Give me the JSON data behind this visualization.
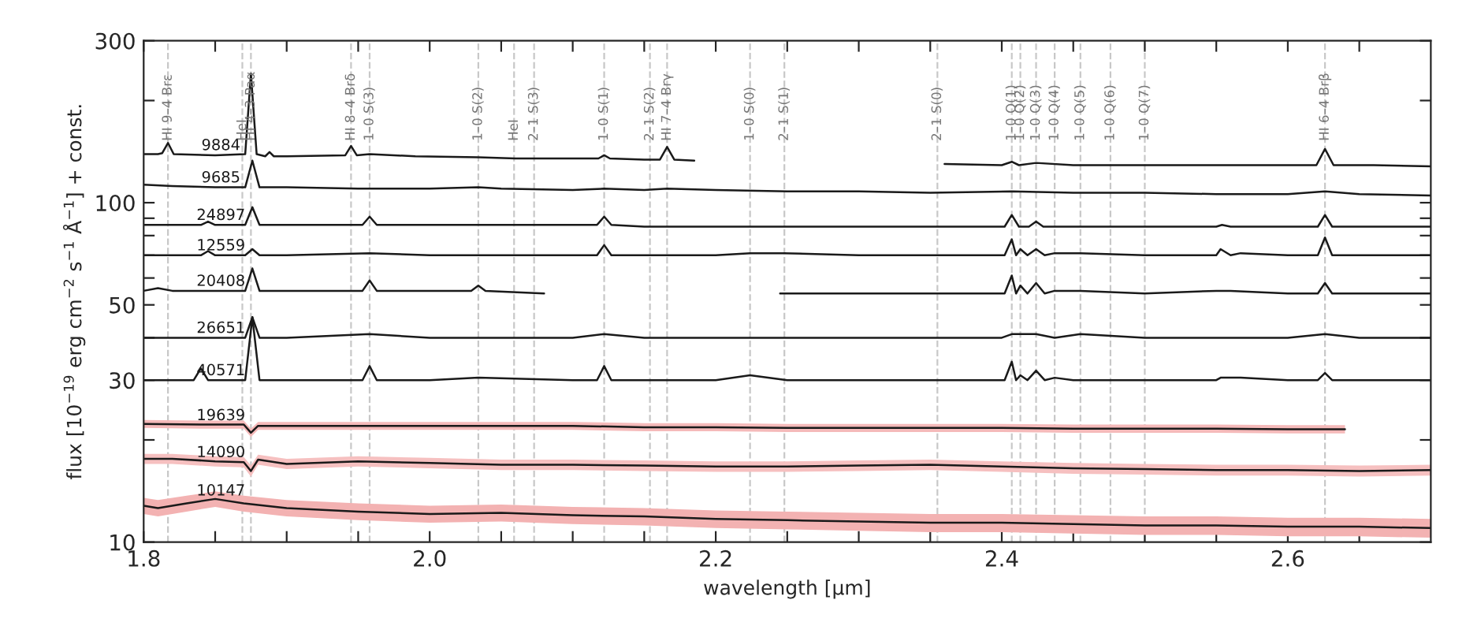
{
  "chart_data": {
    "type": "line",
    "xlabel": "wavelength [µm]",
    "ylabel": "flux [10$^{−19}$ erg cm$^{−2}$ s$^{−1}$ Å$^{−1}$] + const.",
    "log": "y",
    "grid": false,
    "legend": false,
    "line_style": "solid",
    "xlim": [
      1.8,
      2.7
    ],
    "ylim": [
      10,
      300
    ],
    "xticks": [
      1.8,
      {
        "value": 1.85,
        "label": null
      },
      {
        "value": 1.9,
        "label": null
      },
      {
        "value": 1.95,
        "label": null
      },
      {
        "value": 2.0,
        "label": "2.0"
      },
      {
        "value": 2.05,
        "label": null
      },
      {
        "value": 2.1,
        "label": null
      },
      {
        "value": 2.15,
        "label": null
      },
      2.2,
      {
        "value": 2.25,
        "label": null
      },
      {
        "value": 2.3,
        "label": null
      },
      {
        "value": 2.35,
        "label": null
      },
      2.4,
      {
        "value": 2.45,
        "label": null
      },
      {
        "value": 2.5,
        "label": null
      },
      {
        "value": 2.55,
        "label": null
      },
      2.6,
      {
        "value": 2.65,
        "label": null
      }
    ],
    "yticks": [
      10,
      {
        "value": 20,
        "label": null
      },
      30,
      {
        "value": 40,
        "label": null
      },
      50,
      {
        "value": 60,
        "label": null
      },
      {
        "value": 70,
        "label": null
      },
      {
        "value": 80,
        "label": null
      },
      {
        "value": 90,
        "label": null
      },
      100,
      {
        "value": 200,
        "label": null
      },
      300
    ],
    "ref_lines": [
      {
        "axis": "x",
        "value": 1.817,
        "label": "HI 9–4 Brε",
        "color": "#c8c8c8",
        "line_style": "dashed"
      },
      {
        "axis": "x",
        "value": 1.869,
        "label": "HeI",
        "color": "#c8c8c8",
        "line_style": "dashed"
      },
      {
        "axis": "x",
        "value": 1.875,
        "label": "HI 4–3 Paα",
        "color": "#c8c8c8",
        "line_style": "dashed"
      },
      {
        "axis": "x",
        "value": 1.945,
        "label": "HI 8–4 Brδ",
        "color": "#c8c8c8",
        "line_style": "dashed"
      },
      {
        "axis": "x",
        "value": 1.958,
        "label": "1–0 S(3)",
        "color": "#c8c8c8",
        "line_style": "dashed"
      },
      {
        "axis": "x",
        "value": 2.034,
        "label": "1–0 S(2)",
        "color": "#c8c8c8",
        "line_style": "dashed"
      },
      {
        "axis": "x",
        "value": 2.059,
        "label": "HeI",
        "color": "#c8c8c8",
        "line_style": "dashed"
      },
      {
        "axis": "x",
        "value": 2.073,
        "label": "2–1 S(3)",
        "color": "#c8c8c8",
        "line_style": "dashed"
      },
      {
        "axis": "x",
        "value": 2.122,
        "label": "1–0 S(1)",
        "color": "#c8c8c8",
        "line_style": "dashed"
      },
      {
        "axis": "x",
        "value": 2.154,
        "label": "2–1 S(2)",
        "color": "#c8c8c8",
        "line_style": "dashed"
      },
      {
        "axis": "x",
        "value": 2.166,
        "label": "HI 7–4 Brγ",
        "color": "#c8c8c8",
        "line_style": "dashed"
      },
      {
        "axis": "x",
        "value": 2.224,
        "label": "1–0 S(0)",
        "color": "#c8c8c8",
        "line_style": "dashed"
      },
      {
        "axis": "x",
        "value": 2.248,
        "label": "2–1 S(1)",
        "color": "#c8c8c8",
        "line_style": "dashed"
      },
      {
        "axis": "x",
        "value": 2.355,
        "label": "2–1 S(0)",
        "color": "#c8c8c8",
        "line_style": "dashed"
      },
      {
        "axis": "x",
        "value": 2.407,
        "label": "1–0 Q(1)",
        "color": "#c8c8c8",
        "line_style": "dashed"
      },
      {
        "axis": "x",
        "value": 2.413,
        "label": "1–0 Q(2)",
        "color": "#c8c8c8",
        "line_style": "dashed"
      },
      {
        "axis": "x",
        "value": 2.424,
        "label": "1–0 Q(3)",
        "color": "#c8c8c8",
        "line_style": "dashed"
      },
      {
        "axis": "x",
        "value": 2.437,
        "label": "1–0 Q(4)",
        "color": "#c8c8c8",
        "line_style": "dashed"
      },
      {
        "axis": "x",
        "value": 2.455,
        "label": "1–0 Q(5)",
        "color": "#c8c8c8",
        "line_style": "dashed"
      },
      {
        "axis": "x",
        "value": 2.476,
        "label": "1–0 Q(6)",
        "color": "#c8c8c8",
        "line_style": "dashed"
      },
      {
        "axis": "x",
        "value": 2.5,
        "label": "1–0 Q(7)",
        "color": "#c8c8c8",
        "line_style": "dashed"
      },
      {
        "axis": "x",
        "value": 2.626,
        "label": "HI 6–4 Brβ",
        "color": "#c8c8c8",
        "line_style": "dashed"
      }
    ],
    "series": [
      {
        "name": "9884",
        "color": "#1a1a1a",
        "x": [
          1.8,
          1.81,
          1.813,
          1.817,
          1.821,
          1.85,
          1.871,
          1.875,
          1.879,
          1.885,
          1.888,
          1.891,
          1.9,
          1.941,
          1.945,
          1.949,
          1.958,
          1.99,
          2.034,
          2.06,
          2.1,
          2.118,
          2.122,
          2.126,
          2.15,
          2.161,
          2.166,
          2.171,
          2.185,
          2.27,
          2.36,
          2.4,
          2.407,
          2.412,
          2.424,
          2.45,
          2.5,
          2.55,
          2.62,
          2.626,
          2.632,
          2.66,
          2.7
        ],
        "values": [
          139,
          139,
          140,
          150,
          139,
          138,
          139,
          240,
          139,
          137,
          141,
          137,
          137,
          138,
          147,
          138,
          139,
          137,
          136,
          135,
          135,
          135,
          138,
          135,
          134,
          134,
          146,
          134,
          133,
          null,
          130,
          129,
          132,
          129,
          131,
          129,
          129,
          129,
          129,
          144,
          129,
          129,
          128
        ]
      },
      {
        "name": "9685",
        "color": "#1a1a1a",
        "x": [
          1.8,
          1.82,
          1.85,
          1.871,
          1.876,
          1.881,
          1.9,
          1.95,
          2.0,
          2.034,
          2.05,
          2.1,
          2.122,
          2.15,
          2.166,
          2.2,
          2.25,
          2.3,
          2.35,
          2.407,
          2.45,
          2.5,
          2.55,
          2.6,
          2.626,
          2.65,
          2.7
        ],
        "values": [
          113,
          112,
          111,
          111,
          133,
          111,
          111,
          110,
          110,
          111,
          110,
          109,
          110,
          109,
          110,
          109,
          108,
          108,
          107,
          108,
          107,
          107,
          106,
          106,
          108,
          106,
          105
        ]
      },
      {
        "name": "24897",
        "color": "#1a1a1a",
        "x": [
          1.8,
          1.82,
          1.84,
          1.845,
          1.85,
          1.871,
          1.876,
          1.881,
          1.9,
          1.953,
          1.958,
          1.963,
          2.0,
          2.034,
          2.1,
          2.117,
          2.122,
          2.127,
          2.15,
          2.2,
          2.248,
          2.3,
          2.355,
          2.4,
          2.402,
          2.407,
          2.412,
          2.419,
          2.424,
          2.429,
          2.45,
          2.5,
          2.55,
          2.554,
          2.56,
          2.6,
          2.621,
          2.626,
          2.631,
          2.65,
          2.7
        ],
        "values": [
          86,
          86,
          86,
          88,
          86,
          86,
          97,
          86,
          86,
          86,
          91,
          86,
          86,
          86,
          86,
          86,
          91,
          86,
          85,
          85,
          85,
          85,
          85,
          85,
          85,
          92,
          85,
          85,
          88,
          85,
          85,
          85,
          85,
          86,
          85,
          85,
          85,
          92,
          85,
          85,
          85
        ]
      },
      {
        "name": "12559",
        "color": "#1a1a1a",
        "x": [
          1.8,
          1.84,
          1.845,
          1.85,
          1.871,
          1.876,
          1.881,
          1.9,
          1.958,
          2.0,
          2.05,
          2.1,
          2.117,
          2.122,
          2.127,
          2.2,
          2.224,
          2.248,
          2.3,
          2.355,
          2.4,
          2.402,
          2.407,
          2.41,
          2.413,
          2.418,
          2.424,
          2.43,
          2.437,
          2.455,
          2.5,
          2.55,
          2.553,
          2.56,
          2.567,
          2.6,
          2.621,
          2.626,
          2.631,
          2.65,
          2.7
        ],
        "values": [
          70,
          70,
          72,
          70,
          70,
          73,
          70,
          70,
          71,
          70,
          70,
          70,
          70,
          75,
          70,
          70,
          71,
          71,
          70,
          70,
          70,
          70,
          78,
          70,
          73,
          70,
          73,
          70,
          71,
          71,
          70,
          70,
          73,
          70,
          71,
          70,
          70,
          79,
          70,
          70,
          70
        ]
      },
      {
        "name": "20408",
        "color": "#1a1a1a",
        "x": [
          1.8,
          1.81,
          1.82,
          1.85,
          1.871,
          1.876,
          1.881,
          1.9,
          1.953,
          1.958,
          1.963,
          2.0,
          2.029,
          2.034,
          2.039,
          2.08,
          2.16,
          2.245,
          2.3,
          2.355,
          2.4,
          2.402,
          2.407,
          2.41,
          2.413,
          2.418,
          2.424,
          2.43,
          2.437,
          2.455,
          2.5,
          2.55,
          2.56,
          2.6,
          2.621,
          2.626,
          2.631,
          2.65,
          2.7
        ],
        "values": [
          55,
          56,
          55,
          55,
          55,
          64,
          55,
          55,
          55,
          59,
          55,
          55,
          55,
          57,
          55,
          54,
          null,
          54,
          54,
          54,
          54,
          54,
          61,
          54,
          57,
          54,
          58,
          54,
          55,
          55,
          54,
          55,
          55,
          54,
          54,
          58,
          54,
          54,
          54
        ]
      },
      {
        "name": "26651",
        "color": "#1a1a1a",
        "x": [
          1.8,
          1.85,
          1.871,
          1.876,
          1.881,
          1.9,
          1.958,
          2.0,
          2.05,
          2.1,
          2.122,
          2.15,
          2.2,
          2.25,
          2.3,
          2.35,
          2.4,
          2.407,
          2.424,
          2.437,
          2.455,
          2.5,
          2.55,
          2.6,
          2.626,
          2.65,
          2.7
        ],
        "values": [
          40,
          40,
          40,
          46,
          40,
          40,
          41,
          40,
          40,
          40,
          41,
          40,
          40,
          40,
          40,
          40,
          40,
          41,
          41,
          40,
          41,
          40,
          40,
          40,
          41,
          40,
          40
        ]
      },
      {
        "name": "40571",
        "color": "#1a1a1a",
        "x": [
          1.8,
          1.82,
          1.835,
          1.84,
          1.845,
          1.85,
          1.871,
          1.876,
          1.881,
          1.9,
          1.953,
          1.958,
          1.963,
          2.0,
          2.034,
          2.1,
          2.117,
          2.122,
          2.127,
          2.15,
          2.2,
          2.224,
          2.25,
          2.3,
          2.35,
          2.4,
          2.402,
          2.407,
          2.41,
          2.413,
          2.418,
          2.424,
          2.43,
          2.437,
          2.45,
          2.5,
          2.55,
          2.553,
          2.567,
          2.6,
          2.621,
          2.626,
          2.631,
          2.65,
          2.7
        ],
        "values": [
          30,
          30,
          30,
          32.5,
          30,
          30,
          30,
          46,
          30,
          30,
          30,
          33,
          30,
          30,
          30.5,
          30,
          30,
          33,
          30,
          30,
          30,
          31,
          30,
          30,
          30,
          30,
          30,
          34,
          30,
          31,
          30,
          32,
          30,
          30.5,
          30,
          30,
          30,
          30.5,
          30.5,
          30,
          30,
          31.5,
          30,
          30,
          30
        ]
      },
      {
        "name": "19639",
        "color": "#1a1a1a",
        "x": [
          1.8,
          1.84,
          1.87,
          1.875,
          1.88,
          1.9,
          1.95,
          2.0,
          2.05,
          2.1,
          2.15,
          2.2,
          2.25,
          2.3,
          2.35,
          2.4,
          2.45,
          2.5,
          2.55,
          2.6,
          2.64
        ],
        "values": [
          22.3,
          22.2,
          22.2,
          21.0,
          22.0,
          22.0,
          22.0,
          22.0,
          22.0,
          22.0,
          21.8,
          21.8,
          21.7,
          21.7,
          21.7,
          21.7,
          21.6,
          21.6,
          21.6,
          21.5,
          21.5
        ],
        "lower": [
          21.7,
          21.6,
          21.6,
          20.4,
          21.4,
          21.4,
          21.4,
          21.4,
          21.4,
          21.4,
          21.2,
          21.2,
          21.1,
          21.1,
          21.1,
          21.1,
          21.0,
          21.0,
          21.0,
          20.9,
          20.9
        ],
        "upper": [
          22.9,
          22.8,
          22.8,
          21.6,
          22.6,
          22.6,
          22.6,
          22.6,
          22.6,
          22.6,
          22.4,
          22.4,
          22.3,
          22.3,
          22.3,
          22.3,
          22.2,
          22.2,
          22.2,
          22.1,
          22.1
        ]
      },
      {
        "name": "14090",
        "color": "#1a1a1a",
        "x": [
          1.8,
          1.82,
          1.85,
          1.87,
          1.875,
          1.88,
          1.9,
          1.95,
          2.0,
          2.05,
          2.1,
          2.15,
          2.2,
          2.25,
          2.3,
          2.35,
          2.4,
          2.45,
          2.5,
          2.55,
          2.6,
          2.65,
          2.7
        ],
        "values": [
          17.6,
          17.6,
          17.3,
          17.2,
          16.2,
          17.5,
          17.0,
          17.3,
          17.1,
          16.9,
          16.9,
          16.8,
          16.7,
          16.7,
          16.8,
          16.9,
          16.7,
          16.5,
          16.4,
          16.3,
          16.3,
          16.2,
          16.3
        ],
        "lower": [
          17.0,
          17.0,
          16.7,
          16.6,
          15.6,
          16.9,
          16.4,
          16.7,
          16.5,
          16.3,
          16.3,
          16.2,
          16.1,
          16.1,
          16.2,
          16.3,
          16.1,
          15.9,
          15.8,
          15.7,
          15.7,
          15.6,
          15.7
        ],
        "upper": [
          18.2,
          18.2,
          17.9,
          17.8,
          16.8,
          18.1,
          17.6,
          17.9,
          17.7,
          17.5,
          17.5,
          17.4,
          17.3,
          17.3,
          17.4,
          17.5,
          17.3,
          17.1,
          17.0,
          16.9,
          16.9,
          16.8,
          16.9
        ]
      },
      {
        "name": "10147",
        "color": "#1a1a1a",
        "x": [
          1.8,
          1.81,
          1.83,
          1.85,
          1.87,
          1.9,
          1.95,
          2.0,
          2.05,
          2.1,
          2.15,
          2.2,
          2.25,
          2.3,
          2.35,
          2.4,
          2.45,
          2.5,
          2.55,
          2.6,
          2.65,
          2.7
        ],
        "values": [
          12.8,
          12.6,
          13.0,
          13.4,
          13.0,
          12.6,
          12.3,
          12.1,
          12.2,
          12.0,
          11.9,
          11.7,
          11.6,
          11.5,
          11.4,
          11.4,
          11.3,
          11.2,
          11.2,
          11.1,
          11.1,
          11.0
        ],
        "lower": [
          12.1,
          11.9,
          12.3,
          12.7,
          12.3,
          11.9,
          11.6,
          11.4,
          11.5,
          11.3,
          11.2,
          11.0,
          10.9,
          10.8,
          10.7,
          10.7,
          10.6,
          10.5,
          10.5,
          10.4,
          10.4,
          10.3
        ],
        "upper": [
          13.5,
          13.3,
          13.7,
          14.1,
          13.7,
          13.3,
          13.0,
          12.8,
          12.9,
          12.7,
          12.6,
          12.4,
          12.3,
          12.2,
          12.1,
          12.1,
          12.0,
          11.9,
          11.9,
          11.8,
          11.8,
          11.7
        ]
      }
    ]
  }
}
